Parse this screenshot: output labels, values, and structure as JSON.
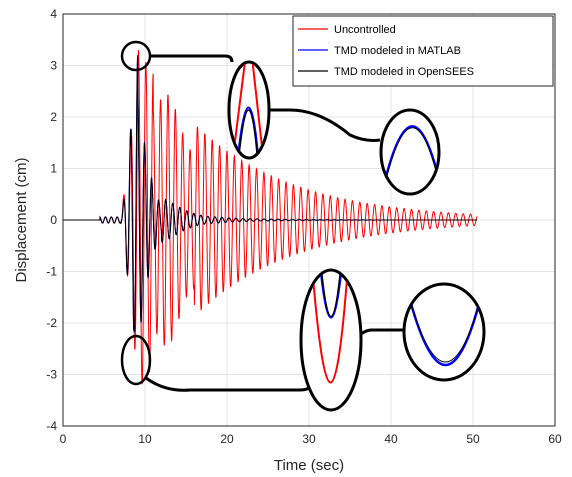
{
  "chart_data": {
    "type": "line",
    "xlabel": "Time (sec)",
    "ylabel": "Displacement (cm)",
    "xlim": [
      0,
      60
    ],
    "ylim": [
      -4,
      4
    ],
    "xticks": [
      "0",
      "10",
      "20",
      "30",
      "40",
      "50",
      "60"
    ],
    "yticks": [
      "-4",
      "-3",
      "-2",
      "-1",
      "0",
      "1",
      "2",
      "3",
      "4"
    ],
    "grid": true,
    "legend_position": "top-right",
    "series": [
      {
        "name": "Uncontrolled",
        "color": "#ff0000",
        "peak_value": 3.3,
        "min_value": -3.3,
        "time_range": [
          0,
          50.5
        ],
        "dominant_period_sec": 0.9,
        "description": "lightly damped free-vibration decay"
      },
      {
        "name": "TMD modeled in MATLAB",
        "color": "#0000ff",
        "peak_value": 3.2,
        "min_value": -2.1,
        "time_range": [
          0,
          50.5
        ]
      },
      {
        "name": "TMD modeled in OpenSEES",
        "color": "#000000",
        "peak_value": 3.2,
        "min_value": -2.1,
        "time_range": [
          0,
          50.5
        ]
      }
    ],
    "annotations": [
      {
        "type": "zoom-circle",
        "target": "peak",
        "x": 9.1,
        "y": 3.2
      },
      {
        "type": "zoom-circle",
        "target": "trough",
        "x": 9.1,
        "y": -2.8
      }
    ]
  }
}
